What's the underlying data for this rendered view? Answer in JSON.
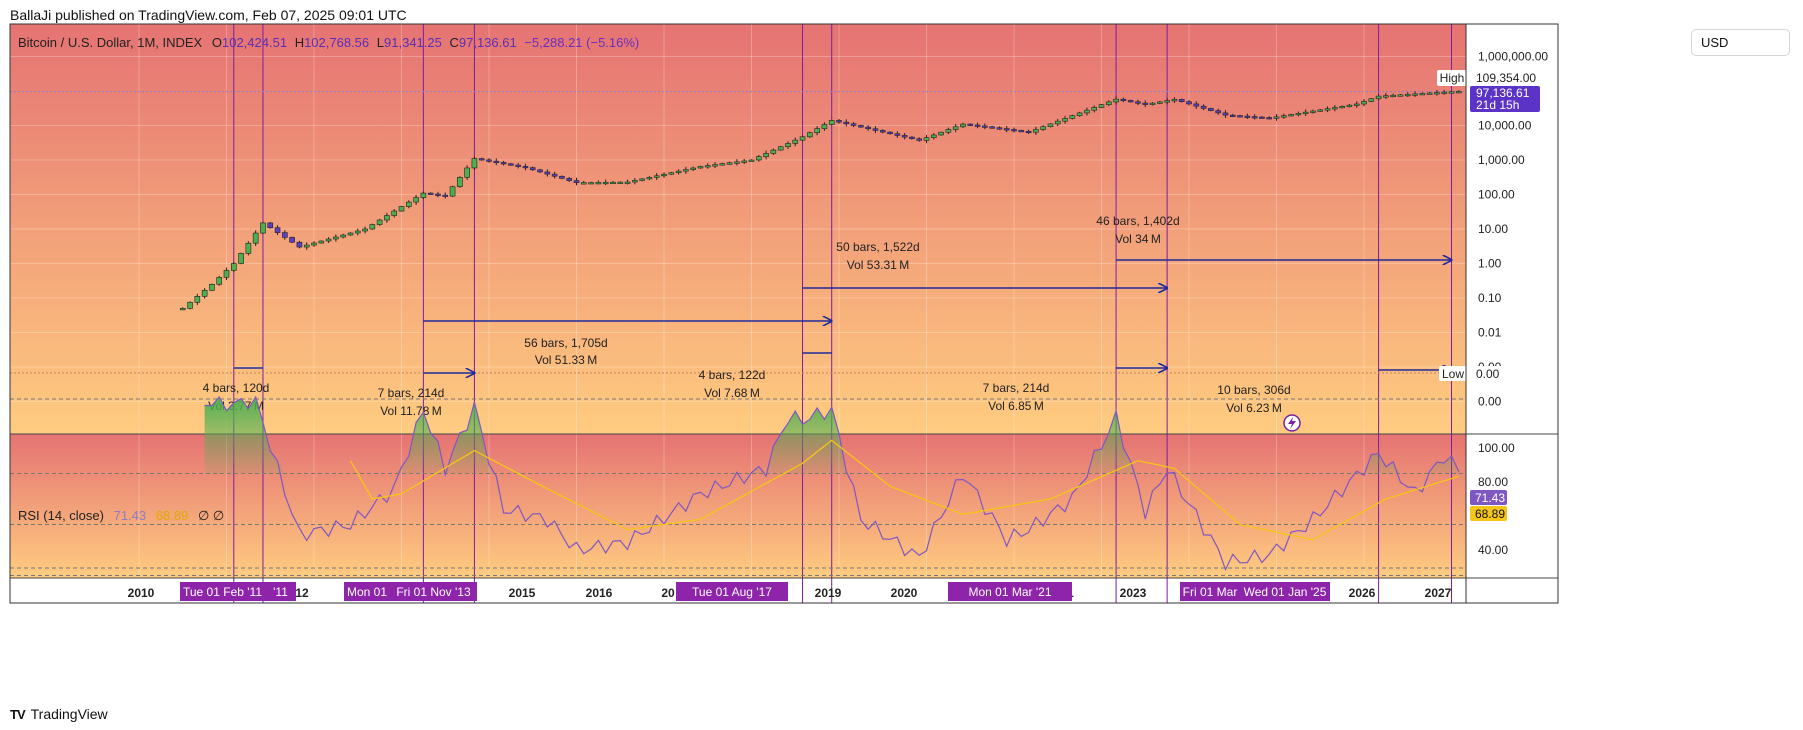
{
  "header": {
    "publish_line": "BallaJi published on TradingView.com, Feb 07, 2025 09:01 UTC",
    "logo_text": "TradingView"
  },
  "legend": {
    "symbol": "Bitcoin / U.S. Dollar, 1M, INDEX",
    "o_label": "O",
    "o_value": "102,424.51",
    "h_label": "H",
    "h_value": "102,768.56",
    "l_label": "L",
    "l_value": "91,341.25",
    "c_label": "C",
    "c_value": "97,136.61",
    "change": "−5,288.21 (−5.16%)"
  },
  "currency_button": "USD",
  "price_scale": {
    "labels": [
      "1,000,000.00",
      "10,000.00",
      "1,000.00",
      "100.00",
      "10.00",
      "1.00",
      "0.10",
      "0.01",
      "0.00",
      "0.00"
    ],
    "high_label": "High",
    "high_value": "109,354.00",
    "last_value": "97,136.61",
    "countdown": "21d 15h",
    "low_label": "Low",
    "low_value": "0.00"
  },
  "rsi": {
    "title": "RSI (14, close)",
    "value": "71.43",
    "ma_value": "68.89",
    "flags": "∅ ∅",
    "scale": [
      "100.00",
      "80.00",
      "40.00"
    ],
    "value_tag": "71.43",
    "ma_tag": "68.89",
    "colors": {
      "rsi": "#7e57c2",
      "ma": "#f5c518",
      "fill": "#4caf50"
    }
  },
  "time_axis": {
    "labels": [
      "2010",
      "12",
      "2015",
      "2016",
      "20",
      "17",
      "2019",
      "2020",
      "uct '21",
      "2023",
      "2026",
      "2027"
    ],
    "tags": [
      "Tue 01 Feb '11",
      "'11",
      "Mon 01",
      "Fri 01 Nov '13",
      "Tue 01 Aug '17",
      "Mon 01 Mar '21",
      "Fri 01 Mar",
      "Wed 01 Jan '25"
    ]
  },
  "measurements": [
    {
      "line1": "4 bars, 120d",
      "line2": "Vol 3.77 M"
    },
    {
      "line1": "7 bars, 214d",
      "line2": "Vol 11.78 M"
    },
    {
      "line1": "56 bars, 1,705d",
      "line2": "Vol 51.33 M"
    },
    {
      "line1": "4 bars, 122d",
      "line2": "Vol 7.68 M"
    },
    {
      "line1": "50 bars, 1,522d",
      "line2": "Vol 53.31 M"
    },
    {
      "line1": "7 bars, 214d",
      "line2": "Vol 6.85 M"
    },
    {
      "line1": "46 bars, 1,402d",
      "line2": "Vol 34 M"
    },
    {
      "line1": "10 bars, 306d",
      "line2": "Vol 6.23 M"
    }
  ],
  "colors": {
    "accent": "#7b1fa2",
    "measure_line": "#1f2a9c",
    "candle_up": "#4caf50",
    "candle_down": "#5b3fc4",
    "tag_bg": "#8e24aa",
    "price_tag": "#5c33c7",
    "bg_top": "#e57373",
    "bg_bottom": "#ffcc80"
  },
  "chart_data": {
    "type": "candlestick",
    "symbol": "Bitcoin / U.S. Dollar",
    "interval": "1M",
    "y_scale": "log",
    "grid": true,
    "ohlc_last": {
      "open": 102424.51,
      "high": 102768.56,
      "low": 91341.25,
      "close": 97136.61
    },
    "all_time_high": 109354.0,
    "price_anchors": [
      {
        "date": "2010-07",
        "price": 0.05
      },
      {
        "date": "2010-11",
        "price": 0.25
      },
      {
        "date": "2011-02",
        "price": 1.0
      },
      {
        "date": "2011-06",
        "price": 15.0
      },
      {
        "date": "2011-11",
        "price": 3.0
      },
      {
        "date": "2012-08",
        "price": 10.0
      },
      {
        "date": "2013-04",
        "price": 110.0
      },
      {
        "date": "2013-07",
        "price": 90.0
      },
      {
        "date": "2013-11",
        "price": 1100.0
      },
      {
        "date": "2014-06",
        "price": 600.0
      },
      {
        "date": "2015-01",
        "price": 220.0
      },
      {
        "date": "2015-08",
        "price": 230.0
      },
      {
        "date": "2016-06",
        "price": 650.0
      },
      {
        "date": "2017-01",
        "price": 1000.0
      },
      {
        "date": "2017-08",
        "price": 4700.0
      },
      {
        "date": "2017-12",
        "price": 14000.0
      },
      {
        "date": "2018-12",
        "price": 3700.0
      },
      {
        "date": "2019-06",
        "price": 11000.0
      },
      {
        "date": "2020-03",
        "price": 6400.0
      },
      {
        "date": "2021-03",
        "price": 58000.0
      },
      {
        "date": "2021-07",
        "price": 41000.0
      },
      {
        "date": "2021-11",
        "price": 57000.0
      },
      {
        "date": "2022-06",
        "price": 20000.0
      },
      {
        "date": "2022-12",
        "price": 16500.0
      },
      {
        "date": "2023-12",
        "price": 42000.0
      },
      {
        "date": "2024-03",
        "price": 71000.0
      },
      {
        "date": "2024-12",
        "price": 93000.0
      },
      {
        "date": "2025-02",
        "price": 97136.61
      }
    ],
    "rsi_anchors": [
      {
        "date": "2010-10",
        "rsi": 98
      },
      {
        "date": "2011-02",
        "rsi": 97
      },
      {
        "date": "2011-05",
        "rsi": 99
      },
      {
        "date": "2011-08",
        "rsi": 72
      },
      {
        "date": "2011-11",
        "rsi": 46
      },
      {
        "date": "2012-06",
        "rsi": 50
      },
      {
        "date": "2012-12",
        "rsi": 64
      },
      {
        "date": "2013-04",
        "rsi": 95
      },
      {
        "date": "2013-07",
        "rsi": 72
      },
      {
        "date": "2013-11",
        "rsi": 96
      },
      {
        "date": "2014-03",
        "rsi": 56
      },
      {
        "date": "2014-09",
        "rsi": 52
      },
      {
        "date": "2015-01",
        "rsi": 40
      },
      {
        "date": "2015-08",
        "rsi": 43
      },
      {
        "date": "2016-06",
        "rsi": 62
      },
      {
        "date": "2017-03",
        "rsi": 72
      },
      {
        "date": "2017-06",
        "rsi": 92
      },
      {
        "date": "2017-08",
        "rsi": 91
      },
      {
        "date": "2017-12",
        "rsi": 95
      },
      {
        "date": "2018-04",
        "rsi": 52
      },
      {
        "date": "2018-12",
        "rsi": 37
      },
      {
        "date": "2019-06",
        "rsi": 70
      },
      {
        "date": "2019-12",
        "rsi": 44
      },
      {
        "date": "2020-03",
        "rsi": 48
      },
      {
        "date": "2020-09",
        "rsi": 60
      },
      {
        "date": "2021-03",
        "rsi": 92
      },
      {
        "date": "2021-07",
        "rsi": 55
      },
      {
        "date": "2021-10",
        "rsi": 72
      },
      {
        "date": "2022-06",
        "rsi": 35
      },
      {
        "date": "2022-12",
        "rsi": 38
      },
      {
        "date": "2023-06",
        "rsi": 52
      },
      {
        "date": "2024-03",
        "rsi": 78
      },
      {
        "date": "2024-08",
        "rsi": 62
      },
      {
        "date": "2024-12",
        "rsi": 77
      },
      {
        "date": "2025-02",
        "rsi": 71.43
      }
    ],
    "rsi_ma_anchors": [
      {
        "date": "2012-06",
        "ma": 75
      },
      {
        "date": "2012-09",
        "ma": 60
      },
      {
        "date": "2013-01",
        "ma": 62
      },
      {
        "date": "2013-11",
        "ma": 79
      },
      {
        "date": "2014-09",
        "ma": 64
      },
      {
        "date": "2015-08",
        "ma": 48
      },
      {
        "date": "2016-06",
        "ma": 52
      },
      {
        "date": "2017-08",
        "ma": 74
      },
      {
        "date": "2017-12",
        "ma": 83
      },
      {
        "date": "2018-08",
        "ma": 65
      },
      {
        "date": "2019-06",
        "ma": 54
      },
      {
        "date": "2020-06",
        "ma": 60
      },
      {
        "date": "2021-06",
        "ma": 75
      },
      {
        "date": "2021-11",
        "ma": 72
      },
      {
        "date": "2022-08",
        "ma": 50
      },
      {
        "date": "2023-06",
        "ma": 44
      },
      {
        "date": "2024-04",
        "ma": 60
      },
      {
        "date": "2025-02",
        "ma": 68.89
      }
    ],
    "rsi_levels": [
      70,
      50,
      30
    ],
    "vertical_markers": [
      "2011-02",
      "2011-06",
      "2013-04",
      "2013-11",
      "2017-08",
      "2017-12",
      "2021-03",
      "2021-10",
      "2024-03",
      "2025-01"
    ],
    "measurement_ranges": [
      {
        "from": "2011-02",
        "to": "2011-06",
        "text": "4 bars, 120d"
      },
      {
        "from": "2013-04",
        "to": "2013-11",
        "text": "7 bars, 214d"
      },
      {
        "from": "2013-04",
        "to": "2017-12",
        "text": "56 bars, 1,705d"
      },
      {
        "from": "2017-08",
        "to": "2017-12",
        "text": "4 bars, 122d"
      },
      {
        "from": "2017-08",
        "to": "2021-10",
        "text": "50 bars, 1,522d"
      },
      {
        "from": "2021-03",
        "to": "2021-10",
        "text": "7 bars, 214d"
      },
      {
        "from": "2021-03",
        "to": "2025-01",
        "text": "46 bars, 1,402d"
      },
      {
        "from": "2024-03",
        "to": "2025-01",
        "text": "10 bars, 306d"
      }
    ]
  }
}
